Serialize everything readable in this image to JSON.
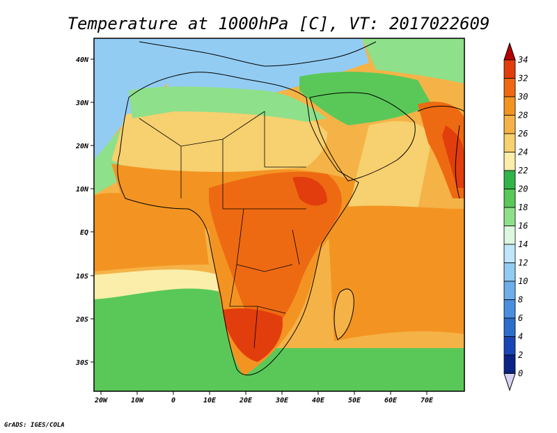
{
  "title": "Temperature at 1000hPa [C], VT: 2017022609",
  "credit": "GrADS: IGES/COLA",
  "map": {
    "lon_range": [
      -23,
      80
    ],
    "lat_range": [
      -37,
      45
    ],
    "lon_ticks": [
      "20W",
      "10W",
      "0",
      "10E",
      "20E",
      "30E",
      "40E",
      "50E",
      "60E",
      "70E"
    ],
    "lat_ticks": [
      "40N",
      "30N",
      "20N",
      "10N",
      "EQ",
      "10S",
      "20S",
      "30S"
    ]
  },
  "colorbar": {
    "labels": [
      "34",
      "32",
      "30",
      "28",
      "26",
      "24",
      "22",
      "20",
      "18",
      "16",
      "14",
      "12",
      "10",
      "8",
      "6",
      "4",
      "2",
      "0"
    ],
    "colors": [
      "#b50000",
      "#e23d0c",
      "#ee6a12",
      "#f39422",
      "#f5b347",
      "#f7d06f",
      "#fbeeab",
      "#32b44a",
      "#5ac858",
      "#8ee08a",
      "#ddf6df",
      "#bfe6f9",
      "#93ccf3",
      "#6faee9",
      "#4a8ee0",
      "#2d6ecc",
      "#1946b6",
      "#0b2385",
      "#d9d2f5"
    ]
  }
}
